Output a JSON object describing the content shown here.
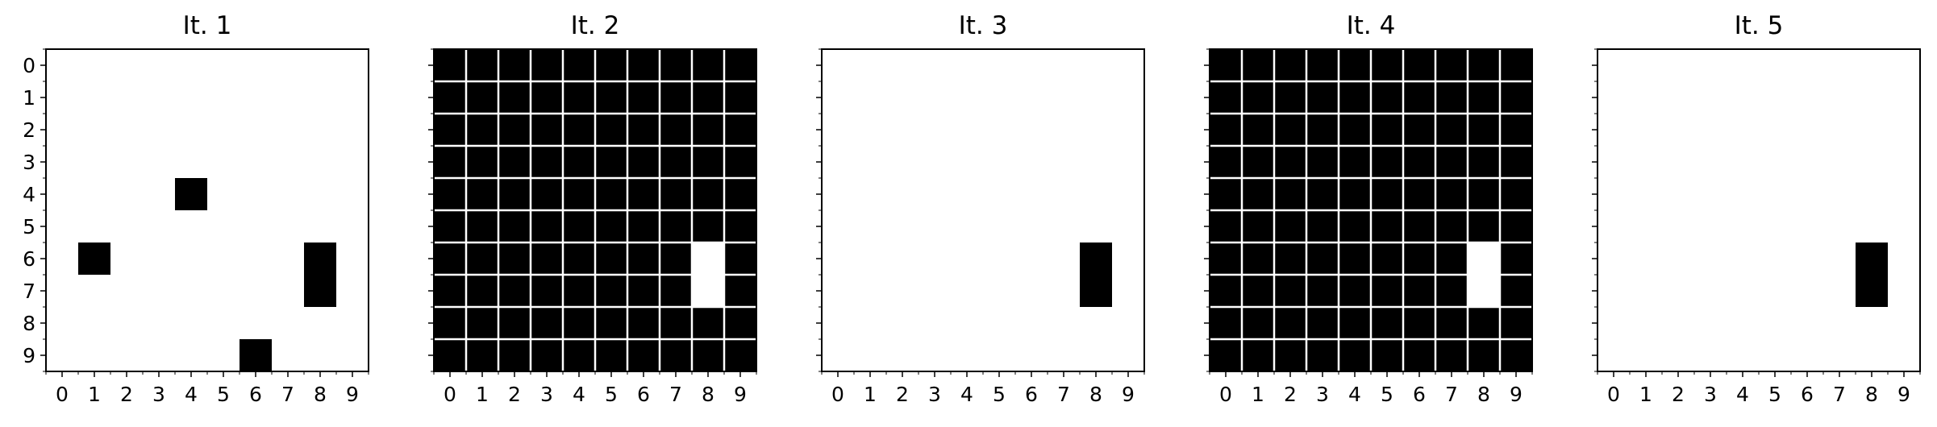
{
  "chart_data": [
    {
      "type": "heatmap",
      "title": "It. 1",
      "x_ticks": [
        "0",
        "1",
        "2",
        "3",
        "4",
        "5",
        "6",
        "7",
        "8",
        "9"
      ],
      "y_ticks": [
        "0",
        "1",
        "2",
        "3",
        "4",
        "5",
        "6",
        "7",
        "8",
        "9"
      ],
      "show_y_tick_labels": true,
      "grid": false,
      "colormap": {
        "0": "#ffffff",
        "1": "#000000"
      },
      "values": [
        [
          0,
          0,
          0,
          0,
          0,
          0,
          0,
          0,
          0,
          0
        ],
        [
          0,
          0,
          0,
          0,
          0,
          0,
          0,
          0,
          0,
          0
        ],
        [
          0,
          0,
          0,
          0,
          0,
          0,
          0,
          0,
          0,
          0
        ],
        [
          0,
          0,
          0,
          0,
          0,
          0,
          0,
          0,
          0,
          0
        ],
        [
          0,
          0,
          0,
          0,
          1,
          0,
          0,
          0,
          0,
          0
        ],
        [
          0,
          0,
          0,
          0,
          0,
          0,
          0,
          0,
          0,
          0
        ],
        [
          0,
          1,
          0,
          0,
          0,
          0,
          0,
          0,
          1,
          0
        ],
        [
          0,
          0,
          0,
          0,
          0,
          0,
          0,
          0,
          1,
          0
        ],
        [
          0,
          0,
          0,
          0,
          0,
          0,
          0,
          0,
          0,
          0
        ],
        [
          0,
          0,
          0,
          0,
          0,
          0,
          1,
          0,
          0,
          0
        ]
      ]
    },
    {
      "type": "heatmap",
      "title": "It. 2",
      "x_ticks": [
        "0",
        "1",
        "2",
        "3",
        "4",
        "5",
        "6",
        "7",
        "8",
        "9"
      ],
      "y_ticks": [
        "0",
        "1",
        "2",
        "3",
        "4",
        "5",
        "6",
        "7",
        "8",
        "9"
      ],
      "show_y_tick_labels": false,
      "grid": false,
      "colormap": {
        "0": "#ffffff",
        "1": "#000000"
      },
      "values": [
        [
          1,
          1,
          1,
          1,
          1,
          1,
          1,
          1,
          1,
          1
        ],
        [
          1,
          1,
          1,
          1,
          1,
          1,
          1,
          1,
          1,
          1
        ],
        [
          1,
          1,
          1,
          1,
          1,
          1,
          1,
          1,
          1,
          1
        ],
        [
          1,
          1,
          1,
          1,
          1,
          1,
          1,
          1,
          1,
          1
        ],
        [
          1,
          1,
          1,
          1,
          1,
          1,
          1,
          1,
          1,
          1
        ],
        [
          1,
          1,
          1,
          1,
          1,
          1,
          1,
          1,
          1,
          1
        ],
        [
          1,
          1,
          1,
          1,
          1,
          1,
          1,
          1,
          0,
          1
        ],
        [
          1,
          1,
          1,
          1,
          1,
          1,
          1,
          1,
          0,
          1
        ],
        [
          1,
          1,
          1,
          1,
          1,
          1,
          1,
          1,
          1,
          1
        ],
        [
          1,
          1,
          1,
          1,
          1,
          1,
          1,
          1,
          1,
          1
        ]
      ]
    },
    {
      "type": "heatmap",
      "title": "It. 3",
      "x_ticks": [
        "0",
        "1",
        "2",
        "3",
        "4",
        "5",
        "6",
        "7",
        "8",
        "9"
      ],
      "y_ticks": [
        "0",
        "1",
        "2",
        "3",
        "4",
        "5",
        "6",
        "7",
        "8",
        "9"
      ],
      "show_y_tick_labels": false,
      "grid": false,
      "colormap": {
        "0": "#ffffff",
        "1": "#000000"
      },
      "values": [
        [
          0,
          0,
          0,
          0,
          0,
          0,
          0,
          0,
          0,
          0
        ],
        [
          0,
          0,
          0,
          0,
          0,
          0,
          0,
          0,
          0,
          0
        ],
        [
          0,
          0,
          0,
          0,
          0,
          0,
          0,
          0,
          0,
          0
        ],
        [
          0,
          0,
          0,
          0,
          0,
          0,
          0,
          0,
          0,
          0
        ],
        [
          0,
          0,
          0,
          0,
          0,
          0,
          0,
          0,
          0,
          0
        ],
        [
          0,
          0,
          0,
          0,
          0,
          0,
          0,
          0,
          0,
          0
        ],
        [
          0,
          0,
          0,
          0,
          0,
          0,
          0,
          0,
          1,
          0
        ],
        [
          0,
          0,
          0,
          0,
          0,
          0,
          0,
          0,
          1,
          0
        ],
        [
          0,
          0,
          0,
          0,
          0,
          0,
          0,
          0,
          0,
          0
        ],
        [
          0,
          0,
          0,
          0,
          0,
          0,
          0,
          0,
          0,
          0
        ]
      ]
    },
    {
      "type": "heatmap",
      "title": "It. 4",
      "x_ticks": [
        "0",
        "1",
        "2",
        "3",
        "4",
        "5",
        "6",
        "7",
        "8",
        "9"
      ],
      "y_ticks": [
        "0",
        "1",
        "2",
        "3",
        "4",
        "5",
        "6",
        "7",
        "8",
        "9"
      ],
      "show_y_tick_labels": false,
      "grid": false,
      "colormap": {
        "0": "#ffffff",
        "1": "#000000"
      },
      "values": [
        [
          1,
          1,
          1,
          1,
          1,
          1,
          1,
          1,
          1,
          1
        ],
        [
          1,
          1,
          1,
          1,
          1,
          1,
          1,
          1,
          1,
          1
        ],
        [
          1,
          1,
          1,
          1,
          1,
          1,
          1,
          1,
          1,
          1
        ],
        [
          1,
          1,
          1,
          1,
          1,
          1,
          1,
          1,
          1,
          1
        ],
        [
          1,
          1,
          1,
          1,
          1,
          1,
          1,
          1,
          1,
          1
        ],
        [
          1,
          1,
          1,
          1,
          1,
          1,
          1,
          1,
          1,
          1
        ],
        [
          1,
          1,
          1,
          1,
          1,
          1,
          1,
          1,
          0,
          1
        ],
        [
          1,
          1,
          1,
          1,
          1,
          1,
          1,
          1,
          0,
          1
        ],
        [
          1,
          1,
          1,
          1,
          1,
          1,
          1,
          1,
          1,
          1
        ],
        [
          1,
          1,
          1,
          1,
          1,
          1,
          1,
          1,
          1,
          1
        ]
      ]
    },
    {
      "type": "heatmap",
      "title": "It. 5",
      "x_ticks": [
        "0",
        "1",
        "2",
        "3",
        "4",
        "5",
        "6",
        "7",
        "8",
        "9"
      ],
      "y_ticks": [
        "0",
        "1",
        "2",
        "3",
        "4",
        "5",
        "6",
        "7",
        "8",
        "9"
      ],
      "show_y_tick_labels": false,
      "grid": false,
      "colormap": {
        "0": "#ffffff",
        "1": "#000000"
      },
      "values": [
        [
          0,
          0,
          0,
          0,
          0,
          0,
          0,
          0,
          0,
          0
        ],
        [
          0,
          0,
          0,
          0,
          0,
          0,
          0,
          0,
          0,
          0
        ],
        [
          0,
          0,
          0,
          0,
          0,
          0,
          0,
          0,
          0,
          0
        ],
        [
          0,
          0,
          0,
          0,
          0,
          0,
          0,
          0,
          0,
          0
        ],
        [
          0,
          0,
          0,
          0,
          0,
          0,
          0,
          0,
          0,
          0
        ],
        [
          0,
          0,
          0,
          0,
          0,
          0,
          0,
          0,
          0,
          0
        ],
        [
          0,
          0,
          0,
          0,
          0,
          0,
          0,
          0,
          1,
          0
        ],
        [
          0,
          0,
          0,
          0,
          0,
          0,
          0,
          0,
          1,
          0
        ],
        [
          0,
          0,
          0,
          0,
          0,
          0,
          0,
          0,
          0,
          0
        ],
        [
          0,
          0,
          0,
          0,
          0,
          0,
          0,
          0,
          0,
          0
        ]
      ]
    }
  ]
}
